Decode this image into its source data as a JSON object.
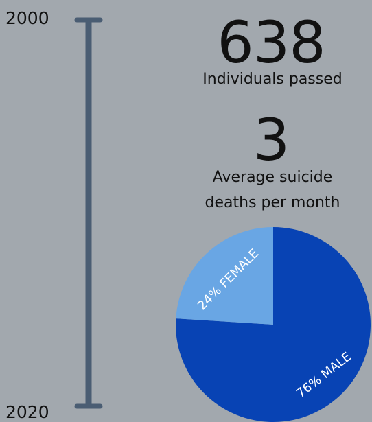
{
  "timeline": {
    "start_label": "2000",
    "end_label": "2020",
    "bar_color": "#4a5d73"
  },
  "stats": {
    "count_value": "638",
    "count_label": "Individuals passed",
    "avg_value": "3",
    "avg_label_line1": "Average suicide",
    "avg_label_line2": "deaths per month"
  },
  "chart_data": {
    "type": "pie",
    "title": "",
    "slices": [
      {
        "label": "76% MALE",
        "value": 76,
        "color": "#0843b4"
      },
      {
        "label": "24% FEMALE",
        "value": 24,
        "color": "#69a6e4"
      }
    ]
  }
}
